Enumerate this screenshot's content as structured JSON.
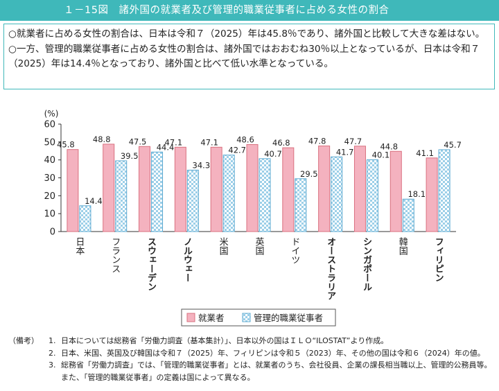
{
  "title": "１－15図　諸外国の就業者及び管理的職業従事者に占める女性の割合",
  "summary": [
    "○就業者に占める女性の割合は、日本は令和７（2025）年は45.8％であり、諸外国と比較して大きな差はない。",
    "○一方、管理的職業従事者に占める女性の割合は、諸外国ではおおむね30％以上となっているが、日本は令和７（2025）年は14.4％となっており、諸外国と比べて低い水準となっている。"
  ],
  "chart_data": {
    "type": "bar",
    "ylabel": "(%)",
    "ylim": [
      0,
      60
    ],
    "yticks": [
      "0",
      "10",
      "20",
      "30",
      "40",
      "50",
      "60"
    ],
    "grid": false,
    "legend_position": "bottom-center",
    "categories": [
      "日本",
      "フランス",
      "スウェーデン",
      "ノルウェー",
      "米国",
      "英国",
      "ドイツ",
      "オーストラリア",
      "シンガポール",
      "韓国",
      "フィリピン"
    ],
    "series": [
      {
        "name": "就業者",
        "color": "#f4b2bf",
        "values": [
          45.8,
          48.8,
          47.5,
          47.1,
          47.1,
          48.6,
          46.8,
          47.8,
          47.7,
          44.8,
          41.1
        ],
        "labels": [
          "45.8",
          "48.8",
          "47.5",
          "47.1",
          "47.1",
          "48.6",
          "46.8",
          "47.8",
          "47.7",
          "44.8",
          "41.1"
        ]
      },
      {
        "name": "管理的職業従事者",
        "color": "#9ccfe8",
        "values": [
          14.4,
          39.5,
          44.4,
          34.3,
          42.7,
          40.7,
          29.5,
          41.7,
          40.1,
          18.1,
          45.7
        ],
        "labels": [
          "14.4",
          "39.5",
          "44.4",
          "34.3",
          "42.7",
          "40.7",
          "29.5",
          "41.7",
          "40.1",
          "18.1",
          "45.7"
        ]
      }
    ]
  },
  "notes": {
    "lead": "（備考）",
    "items": [
      {
        "num": "1.",
        "text": "日本については総務省「労働力調査（基本集計）」、日本以外の国はＩＬＯ“ILOSTAT”より作成。"
      },
      {
        "num": "2.",
        "text": "日本、米国、英国及び韓国は令和７（2025）年、フィリピンは令和５（2023）年、その他の国は令和６（2024）年の値。"
      },
      {
        "num": "3.",
        "text": "総務省「労働力調査」では、「管理的職業従事者」とは、就業者のうち、会社役員、企業の課長相当職以上、管理的公務員等。また、「管理的職業従事者」の定義は国によって異なる。"
      }
    ]
  }
}
